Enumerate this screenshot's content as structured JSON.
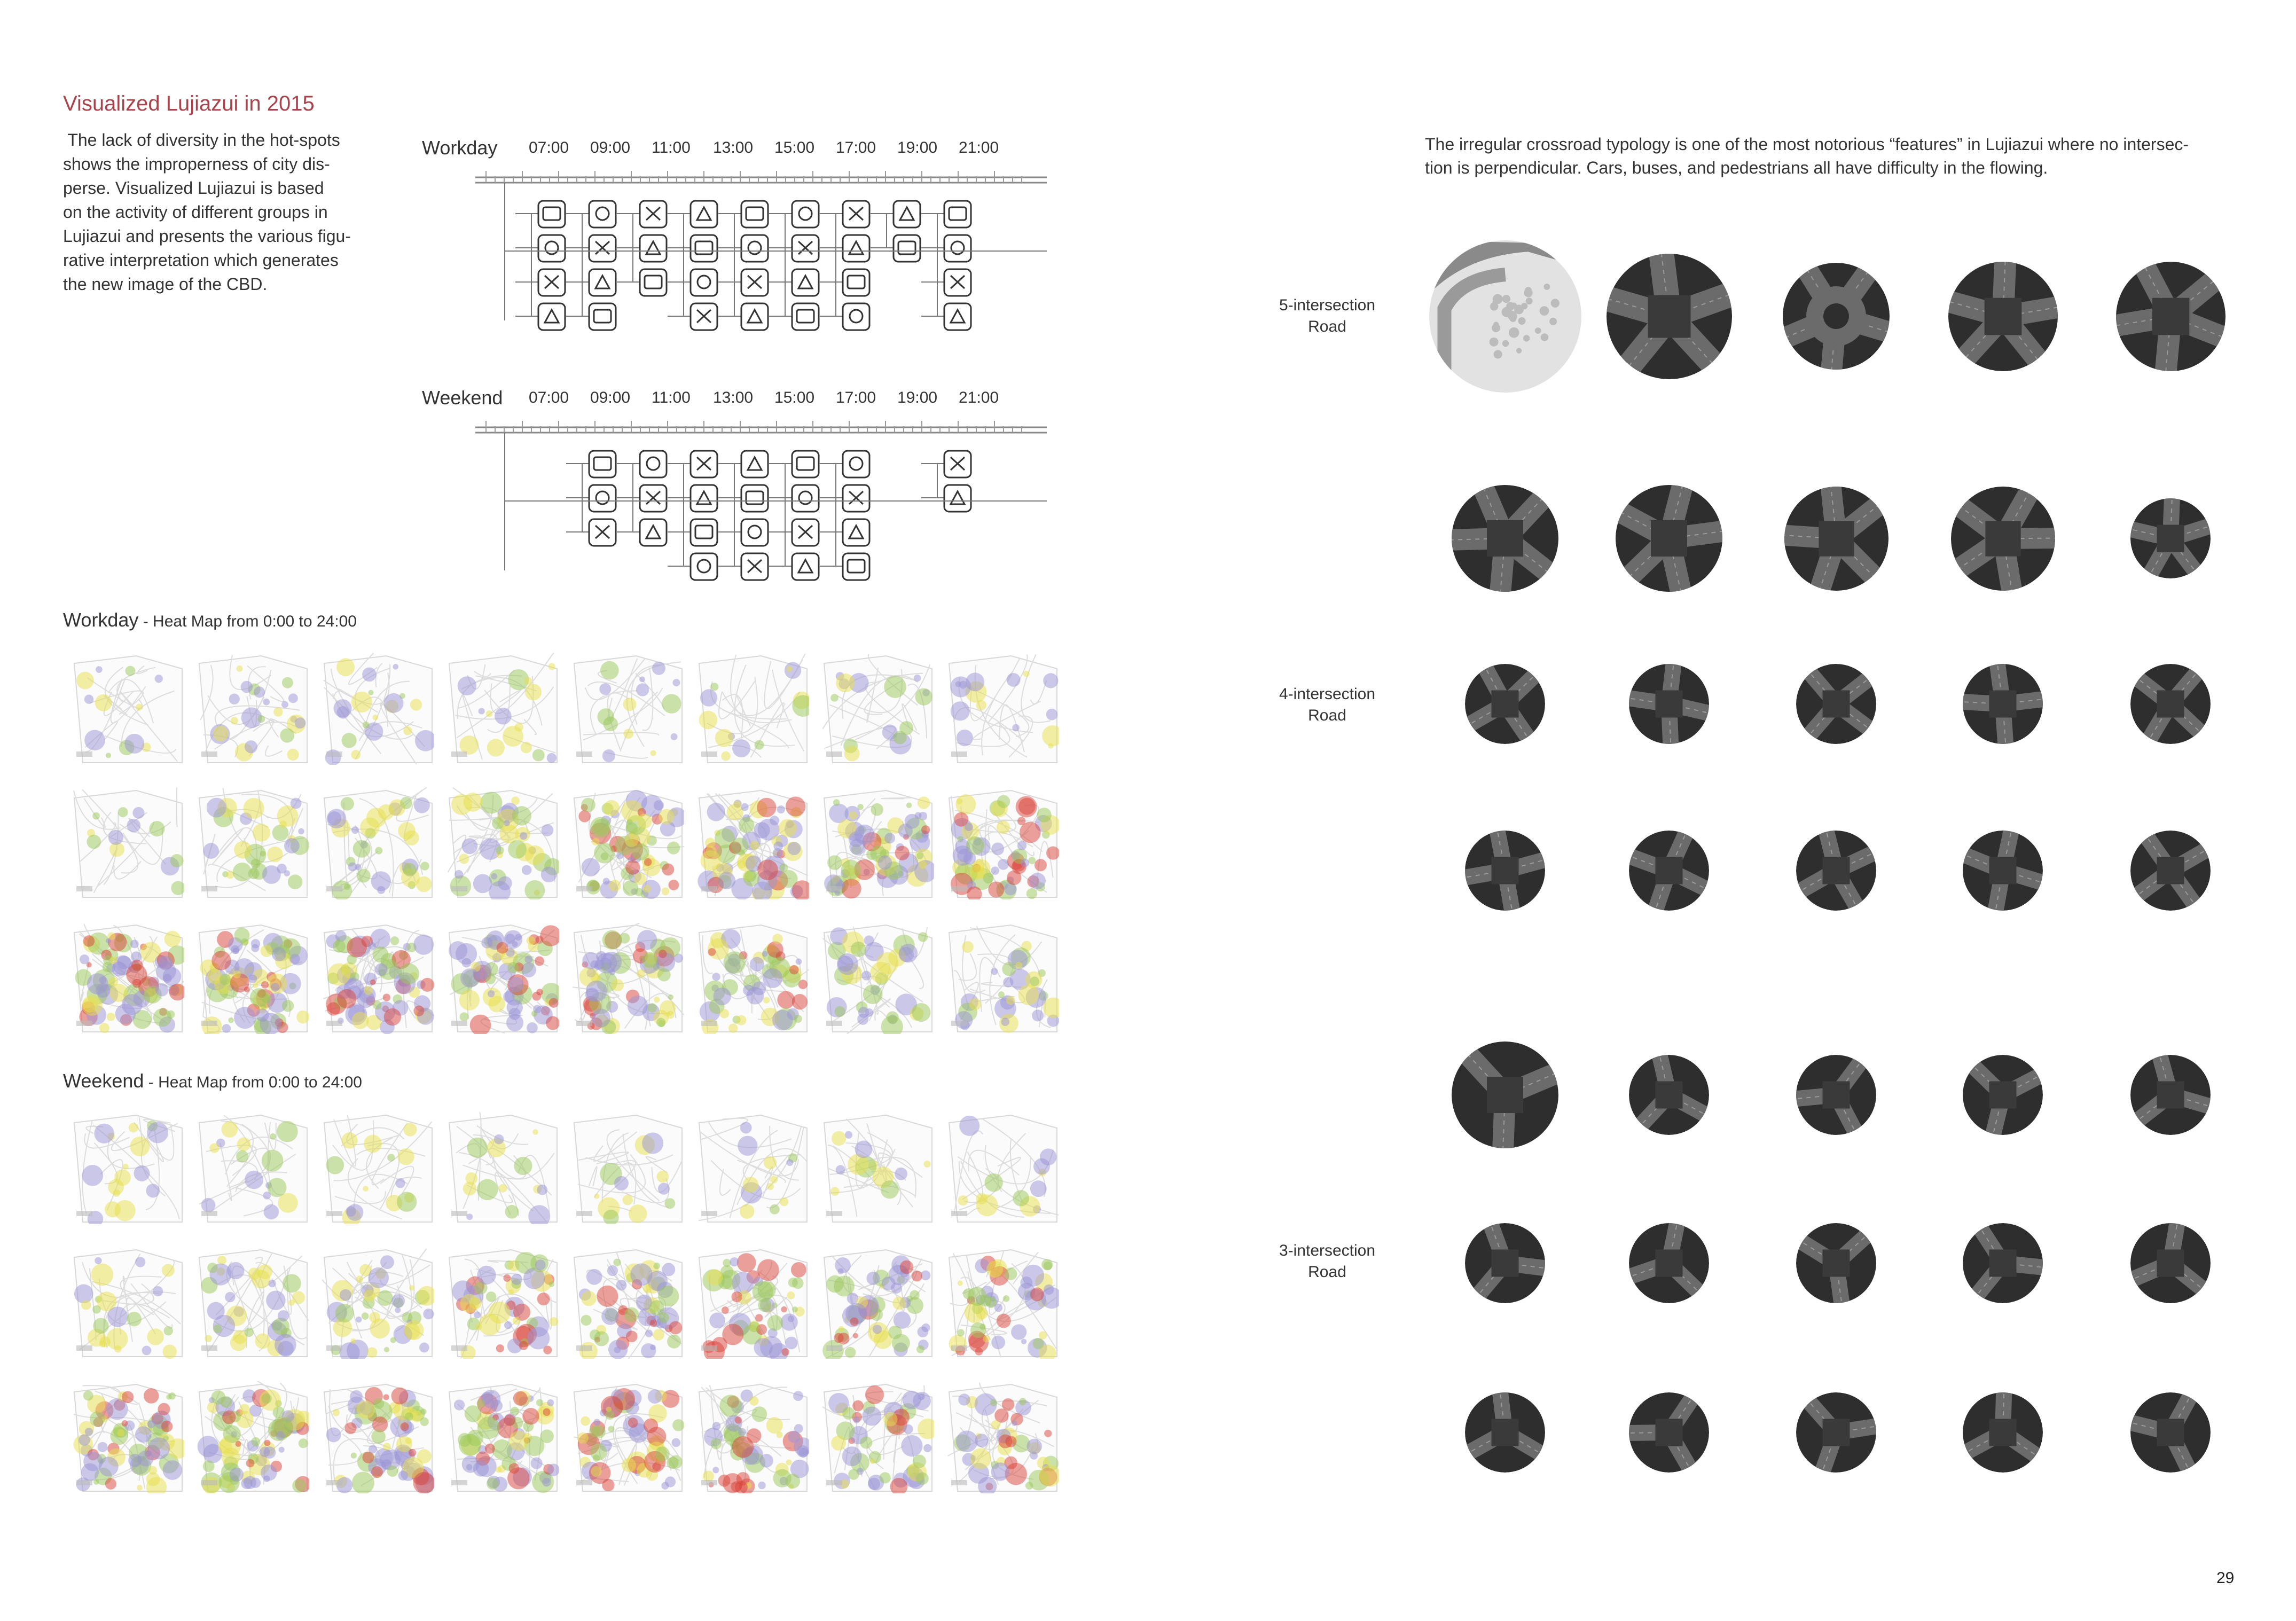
{
  "left": {
    "title": "Visualized Lujiazui in 2015",
    "intro": [
      " The lack of diversity in the hot-spots",
      "shows the improperness of city dis-",
      "perse. Visualized Lujiazui is based",
      "on the activity of different groups in",
      "Lujiazui and presents the various figu-",
      "rative interpretation which generates",
      "the new image of the CBD."
    ],
    "schedule": {
      "times": [
        "07:00",
        "09:00",
        "11:00",
        "13:00",
        "15:00",
        "17:00",
        "19:00",
        "21:00"
      ],
      "workday_label": "Workday",
      "weekend_label": "Weekend"
    },
    "heatmaps": {
      "workday_title": "Workday",
      "workday_sub": " - Heat Map from 0:00 to 24:00",
      "weekend_title": "Weekend",
      "weekend_sub": " - Heat Map from 0:00 to 24:00"
    }
  },
  "right": {
    "intro": [
      "The irregular crossroad typology is one of the most notorious “features” in Lujiazui where no intersec-",
      "tion is perpendicular. Cars, buses, and pedestrians all have difficulty in the flowing."
    ],
    "labels": {
      "five": [
        "5-intersection",
        "Road"
      ],
      "four": [
        "4-intersection",
        "Road"
      ],
      "three": [
        "3-intersection",
        "Road"
      ]
    }
  },
  "page_number": "29",
  "colors": {
    "title_accent": "#a8434b",
    "circle_dark": "#2e2e2e",
    "circle_road": "#6b6b6b",
    "heat_red": "#d9433a",
    "heat_yellow": "#e8e04a",
    "heat_green": "#9ac85a",
    "heat_purple": "#9a93d6"
  }
}
